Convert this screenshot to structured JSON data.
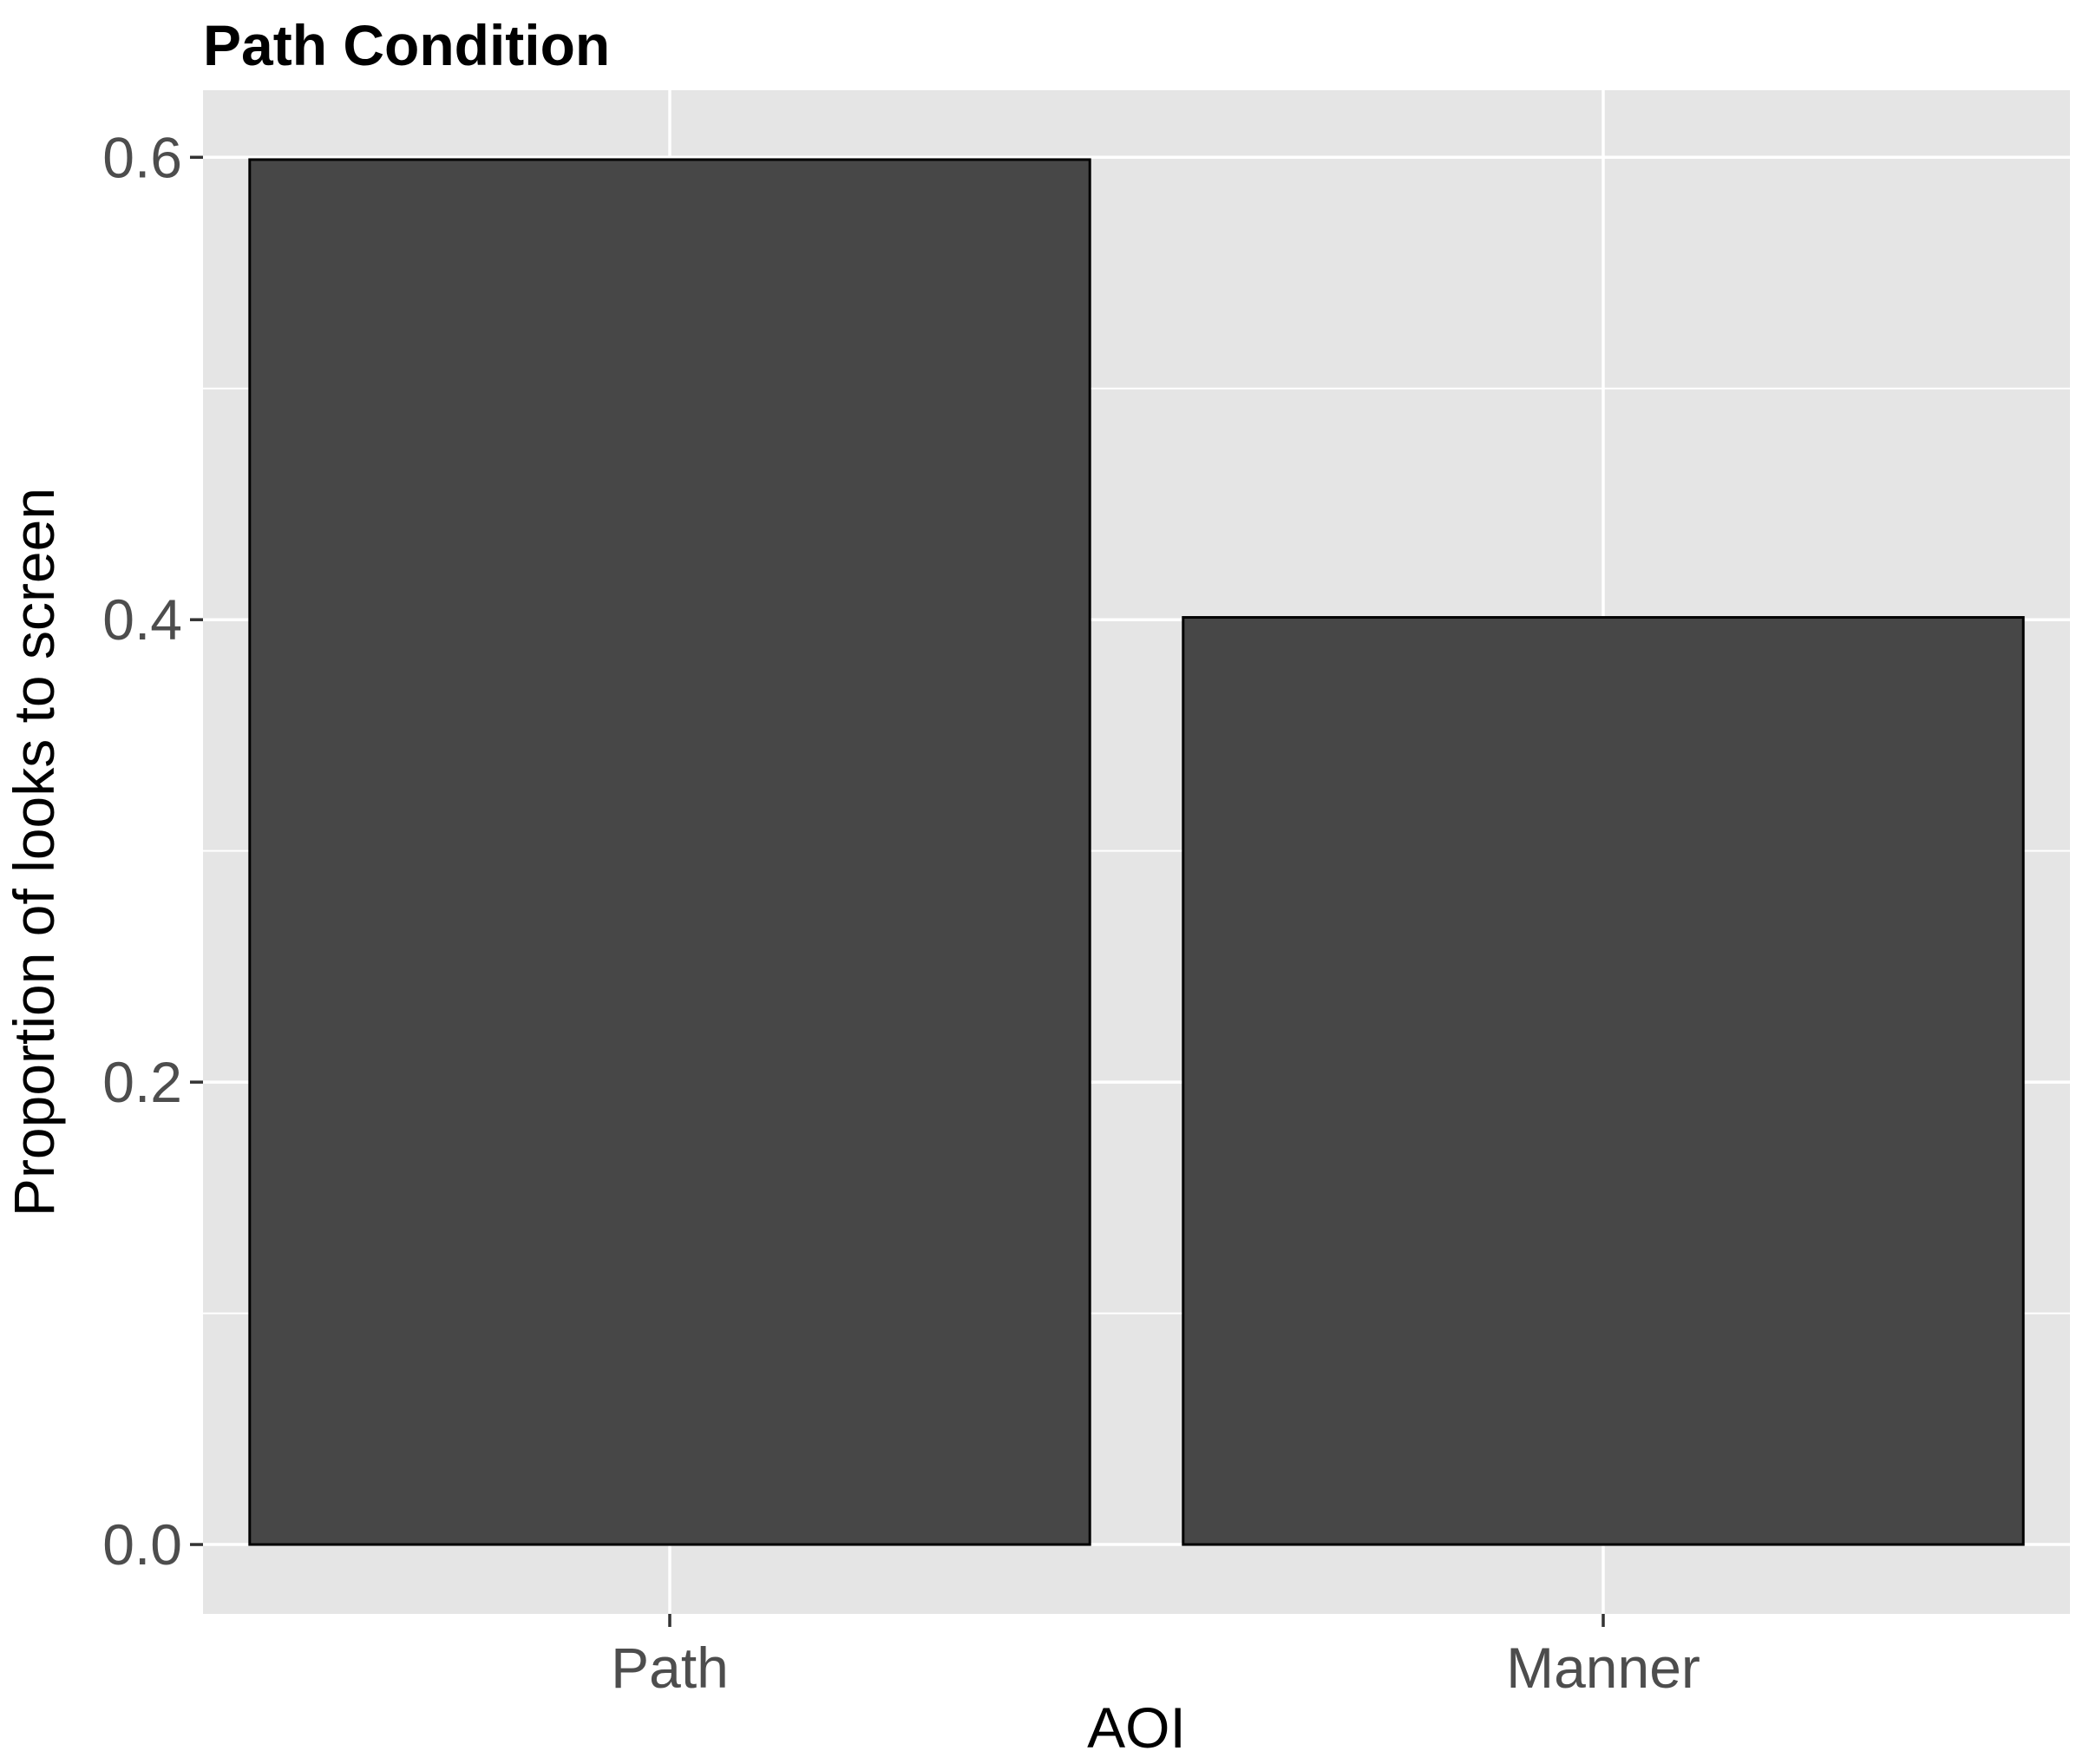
{
  "chart_data": {
    "type": "bar",
    "title": "Path Condition",
    "xlabel": "AOI",
    "ylabel": "Proportion of looks to screen",
    "categories": [
      "Path",
      "Manner"
    ],
    "values": [
      0.599,
      0.401
    ],
    "ylim": [
      -0.03,
      0.629
    ],
    "yticks": [
      0.0,
      0.2,
      0.4,
      0.6
    ],
    "ytick_labels": [
      "0.0",
      "0.2",
      "0.4",
      "0.6"
    ],
    "grid": true,
    "legend": "none",
    "colors": {
      "panel_background": "#e5e5e5",
      "grid_line": "#ffffff",
      "bar_fill": "#474747",
      "bar_outline": "#000000",
      "tick_text": "#4d4d4d",
      "axis_text": "#000000"
    }
  }
}
